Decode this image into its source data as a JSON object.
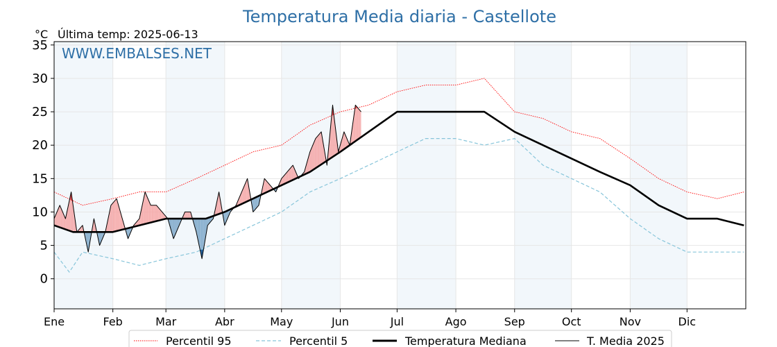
{
  "chart_data": {
    "type": "line",
    "title": "Temperatura Media diaria - Castellote",
    "unit": "°C",
    "last_temp_label": "Última temp: 2025-06-13",
    "watermark": "WWW.EMBALSES.NET",
    "x_axis": {
      "unit": "day_of_year",
      "range": [
        0,
        365
      ],
      "month_labels": [
        "Ene",
        "Feb",
        "Mar",
        "Abr",
        "May",
        "Jun",
        "Jul",
        "Ago",
        "Sep",
        "Oct",
        "Nov",
        "Dic"
      ],
      "month_starts": [
        0,
        31,
        59,
        90,
        120,
        151,
        181,
        212,
        243,
        273,
        304,
        334
      ]
    },
    "y_axis": {
      "range": [
        -4.5,
        35.5
      ],
      "ticks": [
        0,
        5,
        10,
        15,
        20,
        25,
        30,
        35
      ]
    },
    "grid": true,
    "legend_position": "bottom",
    "colors": {
      "p95": "#ff0000",
      "p5": "#87c5da",
      "median": "#000000",
      "t2025": "#000000",
      "above_fill": "#f4a3a3",
      "below_fill": "#7aa6c8",
      "extreme_above_fill": "#e8494f",
      "extreme_below_fill": "#1f5f9e",
      "title": "#2e6fa6",
      "shade": "#dbe8f4"
    },
    "series": [
      {
        "key": "p95",
        "name": "Percentil 95",
        "style": "dotted",
        "x": [
          0,
          15,
          31,
          45,
          59,
          75,
          90,
          105,
          120,
          135,
          151,
          166,
          181,
          196,
          212,
          227,
          243,
          258,
          273,
          288,
          304,
          319,
          334,
          350,
          364
        ],
        "y": [
          13,
          11,
          12,
          13,
          13,
          15,
          17,
          19,
          20,
          23,
          25,
          26,
          28,
          29,
          29,
          30,
          25,
          24,
          22,
          21,
          18,
          15,
          13,
          12,
          13
        ]
      },
      {
        "key": "p5",
        "name": "Percentil 5",
        "style": "dashed",
        "x": [
          0,
          8,
          15,
          31,
          45,
          59,
          75,
          90,
          105,
          120,
          135,
          151,
          166,
          181,
          196,
          212,
          227,
          243,
          258,
          273,
          288,
          304,
          319,
          334,
          350,
          364
        ],
        "y": [
          4,
          1,
          4,
          3,
          2,
          3,
          4,
          6,
          8,
          10,
          13,
          15,
          17,
          19,
          21,
          21,
          20,
          21,
          17,
          15,
          13,
          9,
          6,
          4,
          4,
          4
        ]
      },
      {
        "key": "median",
        "name": "Temperatura Mediana",
        "style": "solid-thick",
        "x": [
          0,
          10,
          20,
          31,
          45,
          59,
          70,
          80,
          90,
          105,
          120,
          135,
          151,
          166,
          181,
          196,
          212,
          227,
          243,
          258,
          273,
          288,
          304,
          319,
          334,
          350,
          364
        ],
        "y": [
          8,
          7,
          7,
          7,
          8,
          9,
          9,
          9,
          10,
          12,
          14,
          16,
          19,
          22,
          25,
          25,
          25,
          25,
          22,
          20,
          18,
          16,
          14,
          11,
          9,
          9,
          8
        ]
      },
      {
        "key": "t2025",
        "name": "T. Media 2025",
        "style": "solid-thin",
        "x": [
          0,
          3,
          6,
          9,
          12,
          15,
          18,
          21,
          24,
          27,
          30,
          33,
          36,
          39,
          42,
          45,
          48,
          51,
          54,
          57,
          60,
          63,
          66,
          69,
          72,
          75,
          78,
          81,
          84,
          87,
          90,
          93,
          96,
          99,
          102,
          105,
          108,
          111,
          114,
          117,
          120,
          123,
          126,
          129,
          132,
          135,
          138,
          141,
          144,
          147,
          150,
          153,
          156,
          159,
          162
        ],
        "y": [
          9,
          11,
          9,
          13,
          7,
          8,
          4,
          9,
          5,
          7,
          11,
          12,
          9,
          6,
          8,
          9,
          13,
          11,
          11,
          10,
          9,
          6,
          8,
          10,
          10,
          7,
          3,
          8,
          9,
          13,
          8,
          10,
          11,
          13,
          15,
          10,
          11,
          15,
          14,
          13,
          15,
          16,
          17,
          15,
          16,
          19,
          21,
          22,
          17,
          26,
          19,
          22,
          20,
          26,
          25
        ]
      }
    ],
    "legend": [
      "Percentil 95",
      "Percentil 5",
      "Temperatura Mediana",
      "T. Media 2025"
    ]
  }
}
